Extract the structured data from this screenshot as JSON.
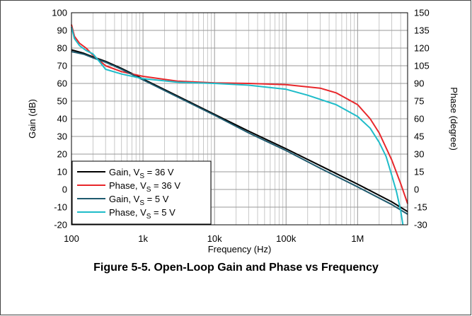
{
  "caption": "Figure 5-5. Open-Loop Gain and Phase vs Frequency",
  "chart_data": {
    "type": "line",
    "xlabel": "Frequency (Hz)",
    "ylabel": "Gain (dB)",
    "y2label": "Phase (degree)",
    "xscale": "log",
    "xlim": [
      100,
      5000000
    ],
    "ylim": [
      -20,
      100
    ],
    "y2lim": [
      -30,
      150
    ],
    "grid": true,
    "legend_position": "bottom-left",
    "x_ticks": [
      {
        "value": 100,
        "label": "100"
      },
      {
        "value": 1000,
        "label": "1k"
      },
      {
        "value": 10000,
        "label": "10k"
      },
      {
        "value": 100000,
        "label": "100k"
      },
      {
        "value": 1000000,
        "label": "1M"
      }
    ],
    "y_ticks": [
      "100",
      "90",
      "80",
      "70",
      "60",
      "50",
      "40",
      "30",
      "20",
      "10",
      "0",
      "-10",
      "-20"
    ],
    "y2_ticks": [
      "150",
      "135",
      "120",
      "105",
      "90",
      "75",
      "60",
      "45",
      "30",
      "15",
      "0",
      "-15",
      "-30"
    ],
    "series": [
      {
        "name": "Gain, VS = 36 V",
        "label_main": "Gain, V",
        "label_sub": "S",
        "label_tail": " = 36 V",
        "axis": "left",
        "color": "#000000",
        "x": [
          100,
          150,
          200,
          300,
          500,
          1000,
          3000,
          10000,
          30000,
          100000,
          300000,
          1000000,
          3000000,
          5000000
        ],
        "y": [
          79,
          77,
          75,
          72.5,
          68.5,
          62.5,
          53,
          42.5,
          33,
          23,
          13.5,
          3,
          -7,
          -12.5
        ]
      },
      {
        "name": "Phase, VS = 36 V",
        "label_main": "Phase, V",
        "label_sub": "S",
        "label_tail": " = 36 V",
        "axis": "right",
        "color": "#e8272b",
        "x": [
          100,
          110,
          130,
          160,
          200,
          300,
          500,
          1000,
          3000,
          10000,
          30000,
          100000,
          300000,
          500000,
          1000000,
          1500000,
          2000000,
          3000000,
          4000000,
          5000000
        ],
        "y": [
          140,
          130,
          124,
          120,
          114,
          105,
          100,
          96,
          92,
          90.5,
          90,
          89,
          86,
          82,
          72,
          60,
          48,
          25,
          5,
          -12
        ]
      },
      {
        "name": "Gain, VS = 5 V",
        "label_main": "Gain, V",
        "label_sub": "S",
        "label_tail": " = 5 V",
        "axis": "left",
        "color": "#1f5a6e",
        "x": [
          100,
          150,
          200,
          300,
          500,
          1000,
          3000,
          10000,
          30000,
          100000,
          300000,
          1000000,
          3000000,
          5000000
        ],
        "y": [
          78,
          76.5,
          74.5,
          72,
          68,
          62,
          52.5,
          42,
          32,
          22,
          12,
          1.5,
          -8.5,
          -14
        ]
      },
      {
        "name": "Phase, VS = 5 V",
        "label_main": "Phase, V",
        "label_sub": "S",
        "label_tail": " = 5 V",
        "axis": "right",
        "color": "#1fbcc9",
        "x": [
          100,
          110,
          130,
          160,
          200,
          250,
          300,
          500,
          1000,
          3000,
          10000,
          30000,
          100000,
          200000,
          500000,
          1000000,
          1500000,
          2000000,
          2500000,
          3000000,
          3500000,
          4000000,
          4300000
        ],
        "y": [
          138,
          128,
          122,
          118,
          115,
          108,
          102,
          98,
          94,
          91,
          90,
          88.5,
          85,
          80,
          72,
          62,
          52,
          40,
          28,
          12,
          -2,
          -18,
          -30
        ]
      }
    ]
  }
}
